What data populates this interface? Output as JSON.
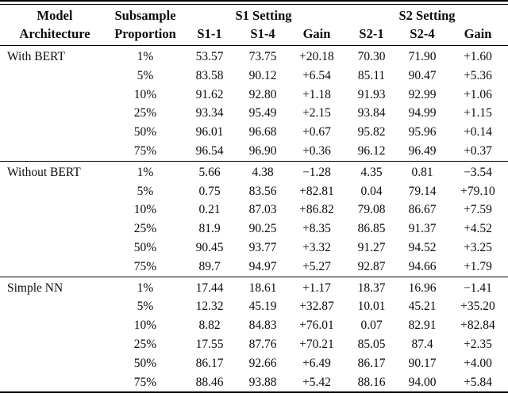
{
  "table": {
    "header": {
      "model_line1": "Model",
      "model_line2": "Architecture",
      "subsample_line1": "Subsample",
      "subsample_line2": "Proportion",
      "s1_group": "S1 Setting",
      "s2_group": "S2 Setting",
      "cols": [
        "S1-1",
        "S1-4",
        "Gain",
        "S2-1",
        "S2-4",
        "Gain"
      ]
    },
    "sections": [
      {
        "architecture": "With BERT",
        "rows": [
          {
            "proportion": "1%",
            "values": [
              "53.57",
              "73.75",
              "+20.18",
              "70.30",
              "71.90",
              "+1.60"
            ]
          },
          {
            "proportion": "5%",
            "values": [
              "83.58",
              "90.12",
              "+6.54",
              "85.11",
              "90.47",
              "+5.36"
            ]
          },
          {
            "proportion": "10%",
            "values": [
              "91.62",
              "92.80",
              "+1.18",
              "91.93",
              "92.99",
              "+1.06"
            ]
          },
          {
            "proportion": "25%",
            "values": [
              "93.34",
              "95.49",
              "+2.15",
              "93.84",
              "94.99",
              "+1.15"
            ]
          },
          {
            "proportion": "50%",
            "values": [
              "96.01",
              "96.68",
              "+0.67",
              "95.82",
              "95.96",
              "+0.14"
            ]
          },
          {
            "proportion": "75%",
            "values": [
              "96.54",
              "96.90",
              "+0.36",
              "96.12",
              "96.49",
              "+0.37"
            ]
          }
        ]
      },
      {
        "architecture": "Without BERT",
        "rows": [
          {
            "proportion": "1%",
            "values": [
              "5.66",
              "4.38",
              "−1.28",
              "4.35",
              "0.81",
              "−3.54"
            ]
          },
          {
            "proportion": "5%",
            "values": [
              "0.75",
              "83.56",
              "+82.81",
              "0.04",
              "79.14",
              "+79.10"
            ]
          },
          {
            "proportion": "10%",
            "values": [
              "0.21",
              "87.03",
              "+86.82",
              "79.08",
              "86.67",
              "+7.59"
            ]
          },
          {
            "proportion": "25%",
            "values": [
              "81.9",
              "90.25",
              "+8.35",
              "86.85",
              "91.37",
              "+4.52"
            ]
          },
          {
            "proportion": "50%",
            "values": [
              "90.45",
              "93.77",
              "+3.32",
              "91.27",
              "94.52",
              "+3.25"
            ]
          },
          {
            "proportion": "75%",
            "values": [
              "89.7",
              "94.97",
              "+5.27",
              "92.87",
              "94.66",
              "+1.79"
            ]
          }
        ]
      },
      {
        "architecture": "Simple NN",
        "rows": [
          {
            "proportion": "1%",
            "values": [
              "17.44",
              "18.61",
              "+1.17",
              "18.37",
              "16.96",
              "−1.41"
            ]
          },
          {
            "proportion": "5%",
            "values": [
              "12.32",
              "45.19",
              "+32.87",
              "10.01",
              "45.21",
              "+35.20"
            ]
          },
          {
            "proportion": "10%",
            "values": [
              "8.82",
              "84.83",
              "+76.01",
              "0.07",
              "82.91",
              "+82.84"
            ]
          },
          {
            "proportion": "25%",
            "values": [
              "17.55",
              "87.76",
              "+70.21",
              "85.05",
              "87.4",
              "+2.35"
            ]
          },
          {
            "proportion": "50%",
            "values": [
              "86.17",
              "92.66",
              "+6.49",
              "86.17",
              "90.17",
              "+4.00"
            ]
          },
          {
            "proportion": "75%",
            "values": [
              "88.46",
              "93.88",
              "+5.42",
              "88.16",
              "94.00",
              "+5.84"
            ]
          }
        ]
      }
    ]
  }
}
